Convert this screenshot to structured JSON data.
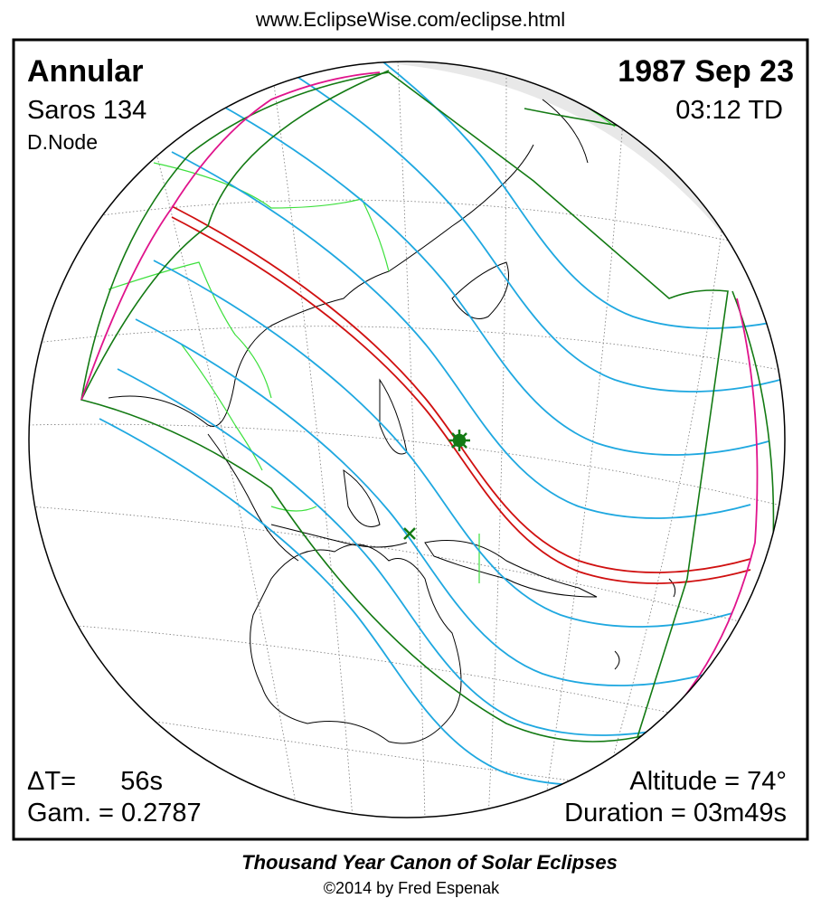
{
  "header": {
    "url": "www.EclipseWise.com/eclipse.html"
  },
  "panel": {
    "eclipse_type": "Annular",
    "date": "1987 Sep 23",
    "saros": "Saros 134",
    "time": "03:12 TD",
    "node": "D.Node",
    "delta_t_label": "ΔT=",
    "delta_t_value": "56s",
    "gamma": "Gam. = 0.2787",
    "altitude": "Altitude = 74°",
    "duration": "Duration = 03m49s"
  },
  "footer": {
    "title": "Thousand Year Canon of Solar Eclipses",
    "copyright": "©2014 by Fred Espenak"
  }
}
